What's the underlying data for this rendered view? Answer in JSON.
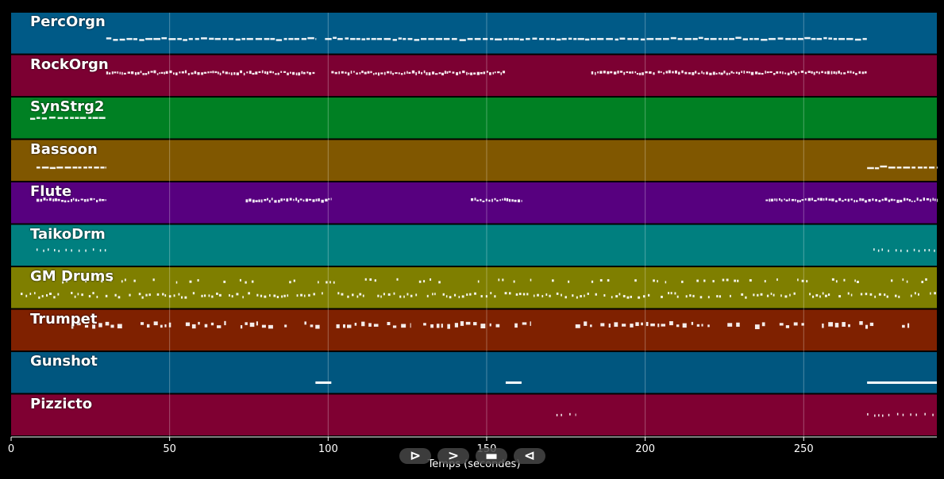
{
  "chart_data": {
    "type": "piano-roll",
    "title": "",
    "xlabel": "Temps (secondes)",
    "xlim": [
      0,
      292
    ],
    "xticks": [
      0,
      50,
      100,
      150,
      200,
      250
    ],
    "grid": true,
    "tracks": [
      {
        "name": "PercOrgn",
        "color": "#005a87",
        "segments": [
          [
            30,
            96
          ],
          [
            99,
            204
          ],
          [
            204,
            215
          ],
          [
            215,
            270
          ]
        ],
        "style": "dashed",
        "pitch": 0.62
      },
      {
        "name": "RockOrgn",
        "color": "#7c0032",
        "segments": [
          [
            30,
            96
          ],
          [
            101,
            156
          ],
          [
            183,
            203
          ],
          [
            204,
            270
          ]
        ],
        "style": "dotted",
        "pitch": 0.42
      },
      {
        "name": "SynStrg2",
        "color": "#008023",
        "segments": [
          [
            6,
            30
          ]
        ],
        "style": "dashed",
        "pitch": 0.48
      },
      {
        "name": "Bassoon",
        "color": "#805700",
        "segments": [
          [
            8,
            30
          ],
          [
            270,
            292
          ]
        ],
        "style": "dashed",
        "pitch": 0.65
      },
      {
        "name": "Flute",
        "color": "#57007f",
        "segments": [
          [
            8,
            30
          ],
          [
            74,
            101
          ],
          [
            145,
            161
          ],
          [
            238,
            292
          ]
        ],
        "style": "dotted",
        "pitch": 0.42
      },
      {
        "name": "TaikoDrm",
        "color": "#007f7f",
        "segments": [
          [
            8,
            30
          ],
          [
            272,
            292
          ]
        ],
        "style": "sparse",
        "pitch": 0.6
      },
      {
        "name": "GM Drums",
        "color": "#7f7f00",
        "segments": [
          [
            3,
            105
          ],
          [
            106,
            292
          ]
        ],
        "style": "drums",
        "pitch": 0.66
      },
      {
        "name": "Trumpet",
        "color": "#7f2100",
        "segments": [
          [
            19,
            126
          ],
          [
            130,
            164
          ],
          [
            178,
            272
          ],
          [
            281,
            285
          ]
        ],
        "style": "blocks",
        "pitch": 0.36
      },
      {
        "name": "Gunshot",
        "color": "#00567f",
        "segments": [
          [
            96,
            101
          ],
          [
            156,
            161
          ],
          [
            270,
            292
          ]
        ],
        "style": "solid",
        "pitch": 0.72
      },
      {
        "name": "Pizzicto",
        "color": "#7f0032",
        "segments": [
          [
            172,
            178
          ],
          [
            270,
            292
          ]
        ],
        "style": "sparse",
        "pitch": 0.48
      }
    ]
  },
  "controls": {
    "play": "⊳",
    "next": ">",
    "stop": "▬",
    "prev": "⊲"
  }
}
